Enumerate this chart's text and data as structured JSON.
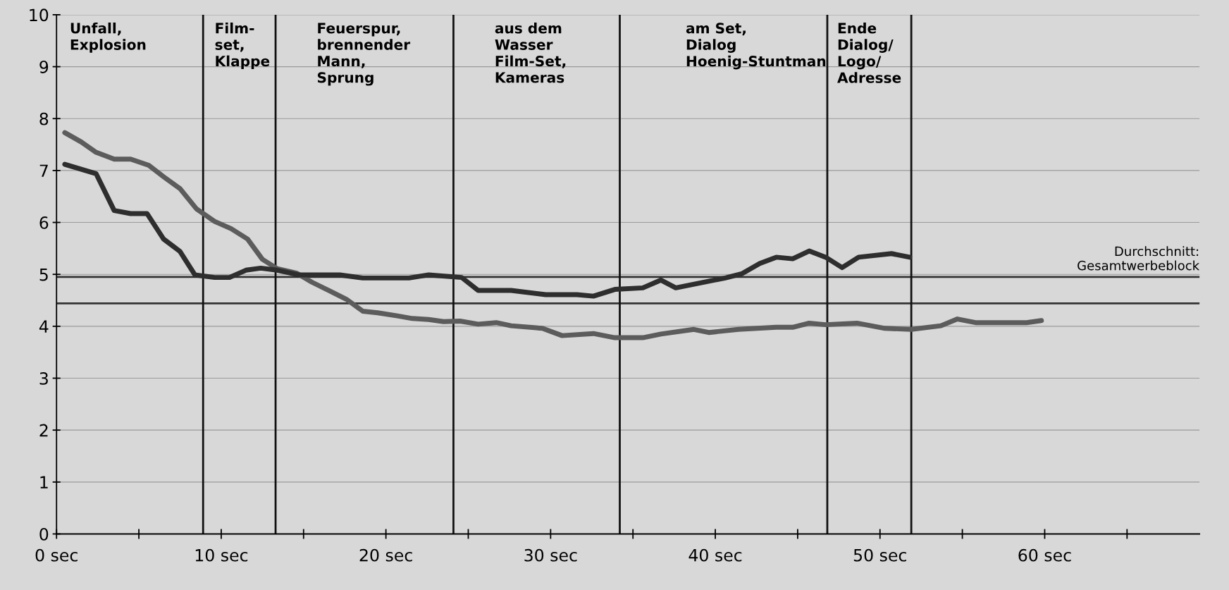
{
  "chart_data": {
    "type": "line",
    "xlim": [
      0,
      69.4
    ],
    "ylim": [
      0,
      10
    ],
    "xticks": [
      {
        "value": 0,
        "label": "0 sec"
      },
      {
        "value": 5,
        "label": null
      },
      {
        "value": 10,
        "label": "10 sec"
      },
      {
        "value": 15,
        "label": null
      },
      {
        "value": 20,
        "label": "20 sec"
      },
      {
        "value": 25,
        "label": null
      },
      {
        "value": 30,
        "label": "30 sec"
      },
      {
        "value": 35,
        "label": null
      },
      {
        "value": 40,
        "label": "40 sec"
      },
      {
        "value": 45,
        "label": null
      },
      {
        "value": 50,
        "label": "50 sec"
      },
      {
        "value": 55,
        "label": null
      },
      {
        "value": 60,
        "label": "60 sec"
      },
      {
        "value": 65,
        "label": null
      }
    ],
    "yticks": [
      0,
      1,
      2,
      3,
      4,
      5,
      6,
      7,
      8,
      9,
      10
    ],
    "grid": "y",
    "legend": false,
    "marker": "none",
    "line_style": "solid",
    "series": [
      {
        "color": "#5c5c5c",
        "x": [
          0.5,
          1.5,
          2.4,
          3.5,
          4.5,
          5.6,
          6.5,
          7.5,
          8.5,
          9.6,
          10.6,
          11.6,
          12.5,
          13.4,
          14.6,
          15.5,
          16.6,
          17.6,
          18.6,
          19.5,
          20.7,
          21.6,
          22.6,
          23.5,
          24.5,
          25.6,
          26.7,
          27.6,
          29.5,
          30.7,
          32.6,
          33.9,
          35.6,
          36.7,
          38.7,
          39.6,
          41.4,
          43.7,
          44.7,
          45.7,
          46.7,
          48.6,
          50.3,
          51.9,
          53.7,
          54.7,
          55.8,
          58.9,
          59.8
        ],
        "values": [
          7.73,
          7.55,
          7.35,
          7.22,
          7.22,
          7.1,
          6.88,
          6.65,
          6.26,
          6.02,
          5.88,
          5.68,
          5.29,
          5.11,
          5.02,
          4.85,
          4.68,
          4.52,
          4.29,
          4.26,
          4.2,
          4.15,
          4.13,
          4.09,
          4.1,
          4.04,
          4.07,
          4.01,
          3.96,
          3.82,
          3.86,
          3.78,
          3.78,
          3.85,
          3.94,
          3.88,
          3.94,
          3.98,
          3.98,
          4.06,
          4.03,
          4.06,
          3.96,
          3.94,
          4.01,
          4.14,
          4.07,
          4.07,
          4.11
        ]
      },
      {
        "color": "#2e2e2e",
        "x": [
          0.5,
          2.4,
          3.5,
          4.5,
          5.5,
          6.5,
          7.5,
          8.4,
          9.6,
          10.5,
          11.5,
          12.4,
          13.4,
          14.7,
          17.2,
          18.6,
          21.4,
          22.6,
          24.6,
          25.6,
          27.6,
          29.7,
          31.6,
          32.6,
          33.9,
          35.6,
          36.7,
          37.6,
          40.6,
          41.6,
          42.7,
          43.7,
          44.7,
          45.7,
          46.7,
          47.7,
          48.7,
          50.7,
          51.8
        ],
        "values": [
          7.12,
          6.94,
          6.23,
          6.17,
          6.17,
          5.68,
          5.44,
          4.99,
          4.94,
          4.94,
          5.08,
          5.12,
          5.08,
          4.99,
          4.99,
          4.93,
          4.93,
          4.99,
          4.94,
          4.69,
          4.69,
          4.61,
          4.61,
          4.58,
          4.71,
          4.74,
          4.89,
          4.74,
          4.93,
          5.01,
          5.21,
          5.33,
          5.3,
          5.45,
          5.33,
          5.13,
          5.33,
          5.4,
          5.33
        ]
      }
    ],
    "ref_lines": [
      {
        "axis": "y",
        "value": 4.95,
        "label": "Durchschnitt:\nGesamtwerbeblock",
        "color": "#333333"
      },
      {
        "axis": "y",
        "value": 4.44,
        "color": "#333333"
      },
      {
        "axis": "x",
        "value": 8.9,
        "color": "#111111"
      },
      {
        "axis": "x",
        "value": 13.3,
        "color": "#111111"
      },
      {
        "axis": "x",
        "value": 24.1,
        "color": "#111111"
      },
      {
        "axis": "x",
        "value": 34.2,
        "color": "#111111"
      },
      {
        "axis": "x",
        "value": 46.8,
        "color": "#111111"
      },
      {
        "axis": "x",
        "value": 51.9,
        "color": "#111111"
      }
    ],
    "annotations": [
      "Unfall,\nExplosion",
      "Film-\nset,\nKlappe",
      "Feuerspur,\nbrennender\nMann,\nSprung",
      "aus dem\nWasser\nFilm-Set,\nKameras",
      "am Set,\nDialog\nHoenig-Stuntman",
      "Ende\nDialog/\nLogo/\nAdresse"
    ]
  }
}
